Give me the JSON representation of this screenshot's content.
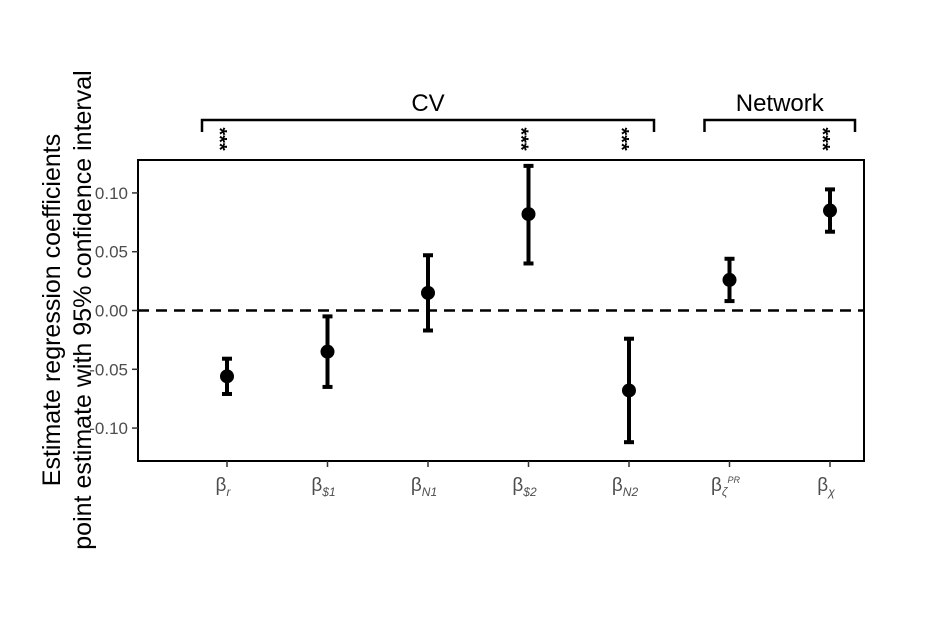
{
  "chart_data": {
    "type": "scatter",
    "ylabel_lines": [
      "Estimate regression coefficients",
      "point estimate with 95% confidence interval"
    ],
    "ylim": [
      -0.128,
      0.128
    ],
    "yticks": [
      0.1,
      0.05,
      0.0,
      -0.05,
      -0.1
    ],
    "ytick_labels": [
      "0.10",
      "0.05",
      "0.00",
      "-0.05",
      "-0.10"
    ],
    "reference_line": {
      "y": 0.0,
      "style": "dashed"
    },
    "grid": false,
    "categories": [
      {
        "base": "β",
        "sub": "r",
        "sup": ""
      },
      {
        "base": "β",
        "sub": "$1",
        "sup": ""
      },
      {
        "base": "β",
        "sub": "N1",
        "sup": ""
      },
      {
        "base": "β",
        "sub": "$2",
        "sup": ""
      },
      {
        "base": "β",
        "sub": "N2",
        "sup": ""
      },
      {
        "base": "β",
        "sub": "ζ",
        "sup": "PR"
      },
      {
        "base": "β",
        "sub": "χ",
        "sup": ""
      }
    ],
    "values": [
      -0.056,
      -0.035,
      0.015,
      0.082,
      -0.068,
      0.026,
      0.085
    ],
    "ci_lower": [
      -0.071,
      -0.065,
      -0.017,
      0.04,
      -0.112,
      0.008,
      0.067
    ],
    "ci_upper": [
      -0.041,
      -0.005,
      0.047,
      0.123,
      -0.024,
      0.044,
      0.103
    ],
    "significance": [
      "***",
      "",
      "",
      "***",
      "***",
      "",
      "***"
    ],
    "groups": [
      {
        "label": "CV",
        "from": 0,
        "to": 4
      },
      {
        "label": "Network",
        "from": 5,
        "to": 6
      }
    ],
    "colors": {
      "marks": "#000000",
      "tick_text": "#4d4d4d"
    }
  }
}
